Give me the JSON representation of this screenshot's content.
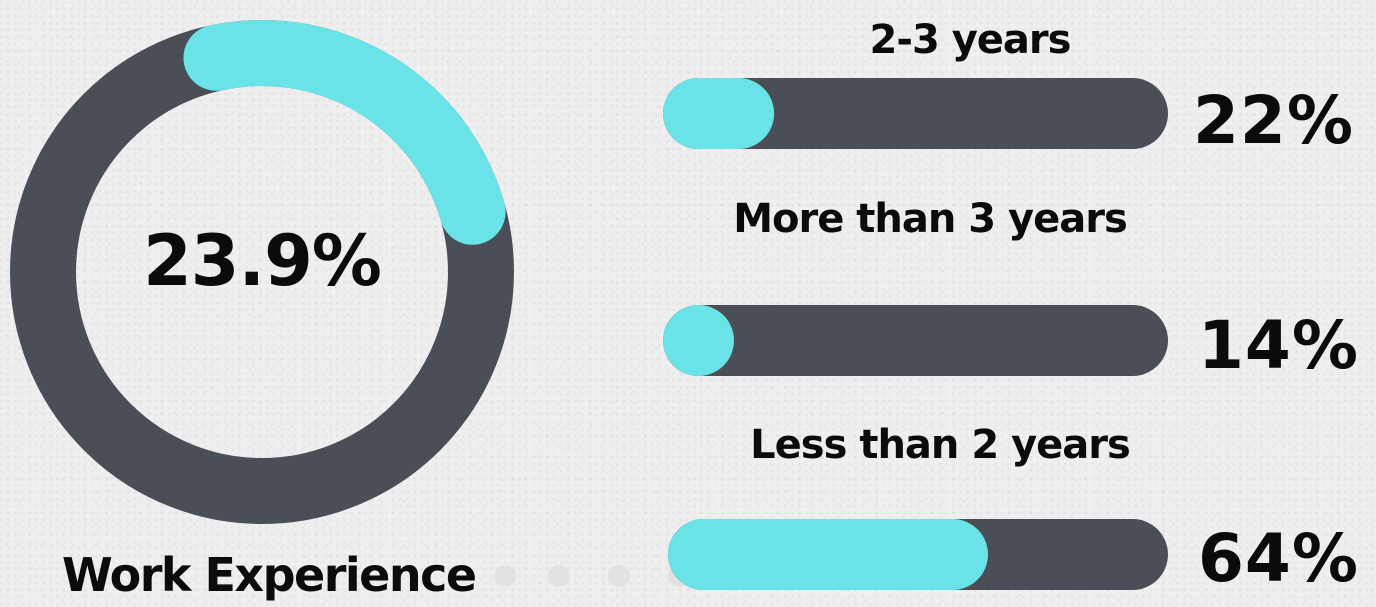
{
  "colors": {
    "track": "#4a4f57",
    "accent": "#6ae3e8",
    "background": "#efefef",
    "dots": "#e2e2e2"
  },
  "chart_data": [
    {
      "type": "pie",
      "variant": "donut",
      "value_percent": 23.9,
      "center_label": "23.9%",
      "caption": "Work Experience"
    },
    {
      "type": "bar",
      "orientation": "horizontal",
      "range": [
        0,
        100
      ],
      "bars": [
        {
          "category": "2-3 years",
          "value": 22,
          "label": "22%"
        },
        {
          "category": "More than 3 years",
          "value": 14,
          "label": "14%"
        },
        {
          "category": "Less than 2 years",
          "value": 64,
          "label": "64%"
        }
      ]
    }
  ]
}
